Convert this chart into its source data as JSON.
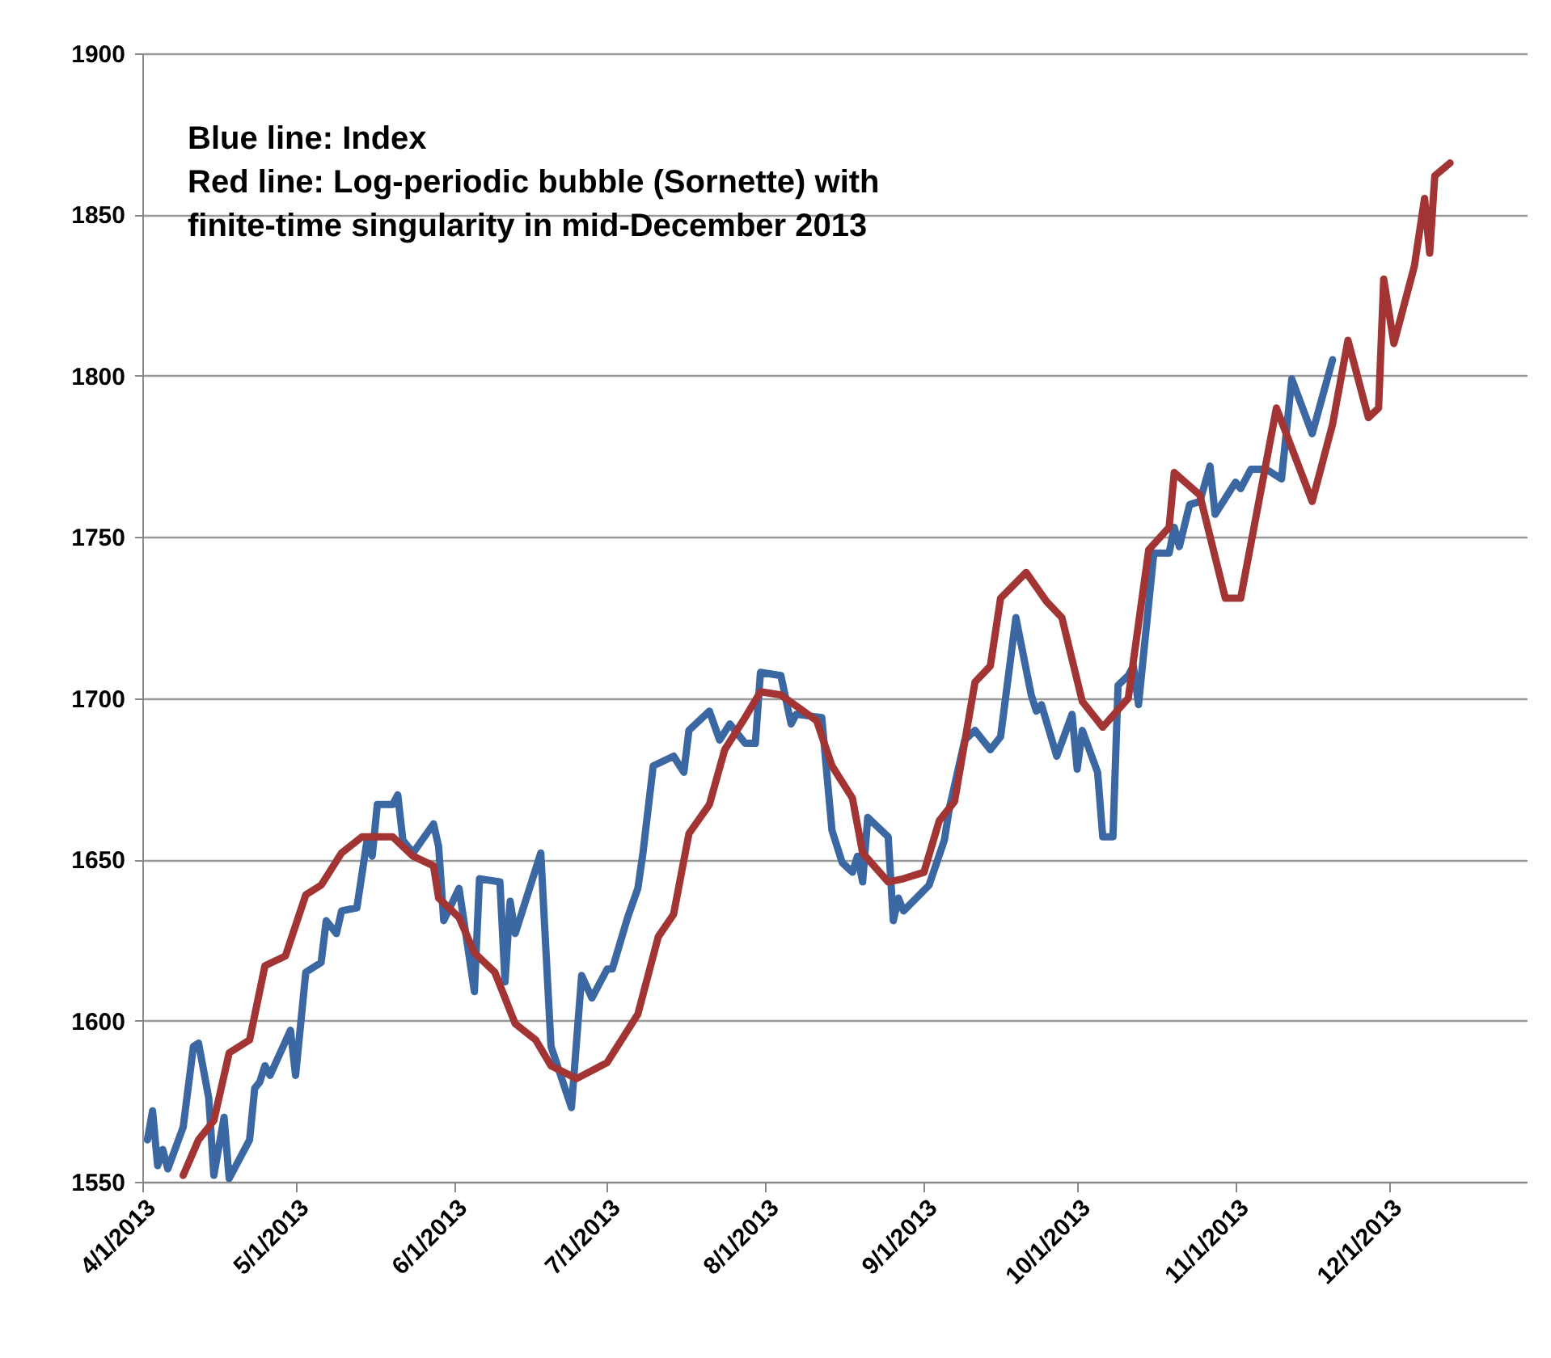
{
  "chart_data": {
    "type": "line",
    "annotations": [
      "Blue line: Index",
      "Red line: Log-periodic bubble (Sornette) with",
      "finite-time singularity in mid-December 2013"
    ],
    "xlim": [
      "2013-04-01",
      "2013-12-28"
    ],
    "xticks": [
      {
        "value": "2013-04-01",
        "label": "4/1/2013"
      },
      {
        "value": "2013-05-01",
        "label": "5/1/2013"
      },
      {
        "value": "2013-06-01",
        "label": "6/1/2013"
      },
      {
        "value": "2013-07-01",
        "label": "7/1/2013"
      },
      {
        "value": "2013-08-01",
        "label": "8/1/2013"
      },
      {
        "value": "2013-09-01",
        "label": "9/1/2013"
      },
      {
        "value": "2013-10-01",
        "label": "10/1/2013"
      },
      {
        "value": "2013-11-01",
        "label": "11/1/2013"
      },
      {
        "value": "2013-12-01",
        "label": "12/1/2013"
      }
    ],
    "ylim": [
      1550,
      1900
    ],
    "yticks": [
      1550,
      1600,
      1650,
      1700,
      1750,
      1800,
      1850,
      1900
    ],
    "grid": "y",
    "marker": "none",
    "line_style": "solid",
    "series": [
      {
        "color": "#3b67a3",
        "x": [
          "2013-04-02",
          "2013-04-03",
          "2013-04-04",
          "2013-04-05",
          "2013-04-06",
          "2013-04-09",
          "2013-04-11",
          "2013-04-12",
          "2013-04-14",
          "2013-04-15",
          "2013-04-17",
          "2013-04-18",
          "2013-04-22",
          "2013-04-23",
          "2013-04-24",
          "2013-04-25",
          "2013-04-26",
          "2013-04-30",
          "2013-05-01",
          "2013-05-03",
          "2013-05-06",
          "2013-05-07",
          "2013-05-09",
          "2013-05-10",
          "2013-05-13",
          "2013-05-15",
          "2013-05-16",
          "2013-05-17",
          "2013-05-20",
          "2013-05-21",
          "2013-05-22",
          "2013-05-24",
          "2013-05-28",
          "2013-05-29",
          "2013-05-30",
          "2013-06-02",
          "2013-06-05",
          "2013-06-06",
          "2013-06-10",
          "2013-06-11",
          "2013-06-12",
          "2013-06-13",
          "2013-06-18",
          "2013-06-20",
          "2013-06-24",
          "2013-06-26",
          "2013-06-28",
          "2013-07-01",
          "2013-07-02",
          "2013-07-05",
          "2013-07-07",
          "2013-07-08",
          "2013-07-10",
          "2013-07-14",
          "2013-07-16",
          "2013-07-17",
          "2013-07-21",
          "2013-07-23",
          "2013-07-25",
          "2013-07-28",
          "2013-07-30",
          "2013-07-31",
          "2013-08-04",
          "2013-08-06",
          "2013-08-07",
          "2013-08-12",
          "2013-08-14",
          "2013-08-16",
          "2013-08-18",
          "2013-08-19",
          "2013-08-20",
          "2013-08-21",
          "2013-08-25",
          "2013-08-26",
          "2013-08-27",
          "2013-08-28",
          "2013-09-02",
          "2013-09-05",
          "2013-09-06",
          "2013-09-09",
          "2013-09-11",
          "2013-09-14",
          "2013-09-16",
          "2013-09-19",
          "2013-09-22",
          "2013-09-23",
          "2013-09-24",
          "2013-09-27",
          "2013-09-30",
          "2013-10-01",
          "2013-10-02",
          "2013-10-05",
          "2013-10-06",
          "2013-10-08",
          "2013-10-09",
          "2013-10-11",
          "2013-10-12",
          "2013-10-13",
          "2013-10-16",
          "2013-10-19",
          "2013-10-20",
          "2013-10-21",
          "2013-10-23",
          "2013-10-25",
          "2013-10-27",
          "2013-10-28",
          "2013-10-30",
          "2013-11-01",
          "2013-11-02",
          "2013-11-04",
          "2013-11-07",
          "2013-11-10",
          "2013-11-12",
          "2013-11-16",
          "2013-11-20"
        ],
        "values": [
          1563,
          1572,
          1555,
          1560,
          1554,
          1567,
          1592,
          1593,
          1576,
          1552,
          1570,
          1551,
          1563,
          1579,
          1581,
          1586,
          1583,
          1597,
          1583,
          1615,
          1618,
          1631,
          1627,
          1634,
          1635,
          1656,
          1651,
          1667,
          1667,
          1670,
          1656,
          1652,
          1661,
          1654,
          1631,
          1641,
          1609,
          1644,
          1643,
          1612,
          1637,
          1627,
          1652,
          1592,
          1573,
          1614,
          1607,
          1616,
          1616,
          1632,
          1641,
          1652,
          1679,
          1682,
          1677,
          1690,
          1696,
          1687,
          1692,
          1686,
          1686,
          1708,
          1707,
          1692,
          1695,
          1694,
          1659,
          1649,
          1646,
          1651,
          1643,
          1663,
          1657,
          1631,
          1638,
          1634,
          1642,
          1656,
          1666,
          1687,
          1690,
          1684,
          1688,
          1725,
          1701,
          1696,
          1698,
          1682,
          1695,
          1678,
          1690,
          1677,
          1657,
          1657,
          1704,
          1707,
          1710,
          1698,
          1745,
          1745,
          1753,
          1747,
          1760,
          1761,
          1772,
          1757,
          1762,
          1767,
          1765,
          1771,
          1771,
          1768,
          1799,
          1782,
          1805
        ]
      },
      {
        "color": "#a33434",
        "x": [
          "2013-04-09",
          "2013-04-12",
          "2013-04-15",
          "2013-04-18",
          "2013-04-22",
          "2013-04-25",
          "2013-04-29",
          "2013-05-03",
          "2013-05-06",
          "2013-05-10",
          "2013-05-14",
          "2013-05-20",
          "2013-05-24",
          "2013-05-28",
          "2013-05-29",
          "2013-06-02",
          "2013-06-05",
          "2013-06-09",
          "2013-06-13",
          "2013-06-17",
          "2013-06-20",
          "2013-06-25",
          "2013-07-01",
          "2013-07-07",
          "2013-07-11",
          "2013-07-14",
          "2013-07-17",
          "2013-07-21",
          "2013-07-24",
          "2013-07-28",
          "2013-07-31",
          "2013-08-04",
          "2013-08-11",
          "2013-08-14",
          "2013-08-18",
          "2013-08-20",
          "2013-08-25",
          "2013-08-28",
          "2013-09-01",
          "2013-09-04",
          "2013-09-07",
          "2013-09-11",
          "2013-09-14",
          "2013-09-16",
          "2013-09-21",
          "2013-09-25",
          "2013-09-28",
          "2013-10-02",
          "2013-10-06",
          "2013-10-11",
          "2013-10-15",
          "2013-10-19",
          "2013-10-20",
          "2013-10-25",
          "2013-10-30",
          "2013-11-02",
          "2013-11-09",
          "2013-11-16",
          "2013-11-20",
          "2013-11-23",
          "2013-11-27",
          "2013-11-29",
          "2013-11-30",
          "2013-12-02",
          "2013-12-06",
          "2013-12-08",
          "2013-12-09",
          "2013-12-10",
          "2013-12-13"
        ],
        "values": [
          1552,
          1563,
          1569,
          1590,
          1594,
          1617,
          1620,
          1639,
          1642,
          1652,
          1657,
          1657,
          1651,
          1648,
          1638,
          1632,
          1621,
          1615,
          1599,
          1594,
          1586,
          1582,
          1587,
          1602,
          1626,
          1633,
          1658,
          1667,
          1684,
          1694,
          1702,
          1701,
          1693,
          1679,
          1669,
          1652,
          1643,
          1644,
          1646,
          1662,
          1668,
          1705,
          1710,
          1731,
          1739,
          1730,
          1725,
          1699,
          1691,
          1700,
          1746,
          1753,
          1770,
          1763,
          1731,
          1731,
          1790,
          1761,
          1785,
          1811,
          1787,
          1790,
          1830,
          1810,
          1834,
          1855,
          1838,
          1862,
          1866
        ]
      }
    ]
  }
}
